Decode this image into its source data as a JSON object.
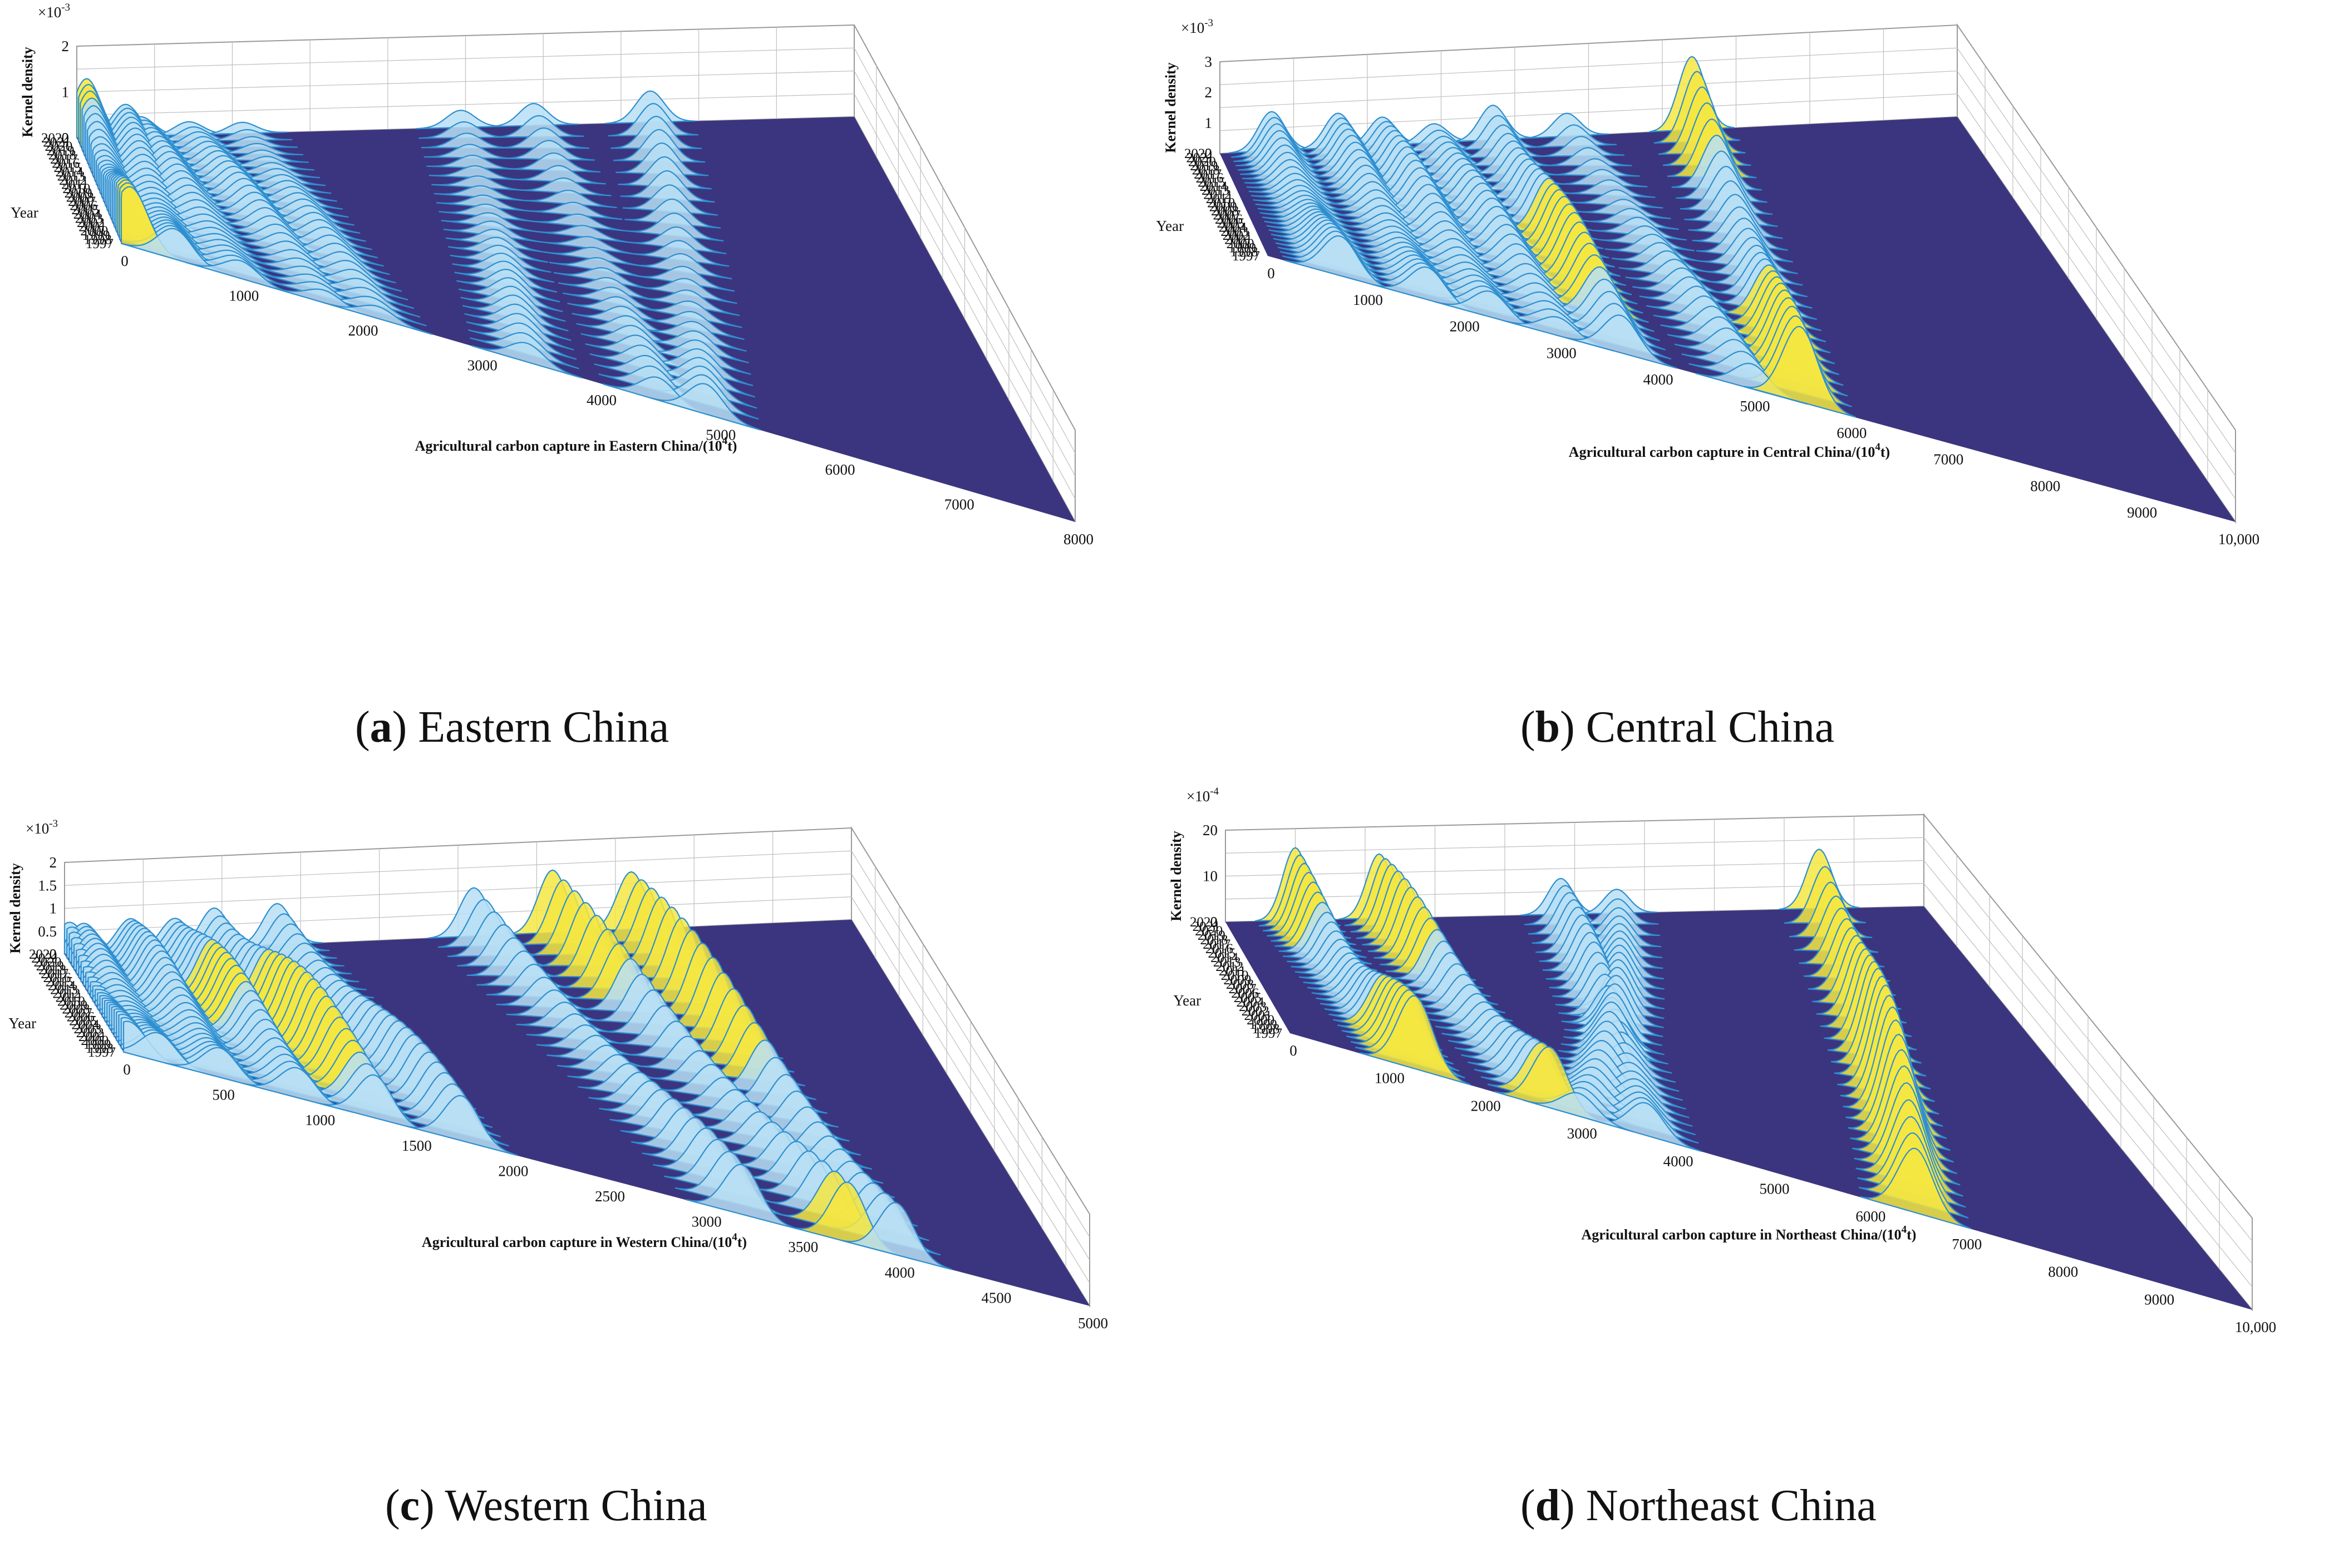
{
  "colors": {
    "floor": "#3b3580",
    "ridge_edge": "#2f8fd0",
    "peak_high": "#f5e642",
    "grid": "#bfbfbf",
    "box": "#9a9a9a"
  },
  "chart_data": [
    {
      "type": "surface",
      "panel_letter": "a",
      "caption": "Eastern China",
      "xlabel": "Agricultural carbon capture in Eastern China/(10",
      "xlabel_sup": "4",
      "xlabel_end": "t)",
      "ylabel": "Year",
      "zlabel": "Kernel density",
      "zscale": "×10",
      "zscale_exp": "-3",
      "xlim": [
        0,
        8000
      ],
      "xticks": [
        "0",
        "1000",
        "2000",
        "3000",
        "4000",
        "5000",
        "6000",
        "7000",
        "8000"
      ],
      "zticks": [
        "0",
        "1",
        "2"
      ],
      "zlim": [
        0,
        2
      ],
      "years": [
        "1997",
        "1998",
        "1999",
        "2000",
        "2001",
        "2002",
        "2003",
        "2004",
        "2005",
        "2006",
        "2007",
        "2008",
        "2009",
        "2010",
        "2011",
        "2012",
        "2013",
        "2014",
        "2015",
        "2016",
        "2017",
        "2018",
        "2019",
        "2020",
        "2021",
        "2022"
      ],
      "ridges": [
        {
          "x_start": 80,
          "x_end": 100,
          "height": 1.3
        },
        {
          "x_start": 450,
          "x_end": 500,
          "height": 0.75
        },
        {
          "x_start": 1000,
          "x_end": 650,
          "height": 0.6
        },
        {
          "x_start": 1700,
          "x_end": 1150,
          "height": 0.55
        },
        {
          "x_start": 2150,
          "x_end": 1700,
          "height": 0.45
        },
        {
          "x_start": 3400,
          "x_end": 3950,
          "height": 0.5
        },
        {
          "x_start": 4500,
          "x_end": 4700,
          "height": 0.5
        },
        {
          "x_start": 4900,
          "x_end": 5900,
          "height": 0.7
        }
      ]
    },
    {
      "type": "surface",
      "panel_letter": "b",
      "caption": "Central China",
      "xlabel": "Agricultural carbon capture in Central China/(10",
      "xlabel_sup": "4",
      "xlabel_end": "t)",
      "ylabel": "Year",
      "zlabel": "Kernel density",
      "zscale": "×10",
      "zscale_exp": "-3",
      "xlim": [
        0,
        10000
      ],
      "xticks": [
        "0",
        "1000",
        "2000",
        "3000",
        "4000",
        "5000",
        "6000",
        "7000",
        "8000",
        "9000",
        "10,000"
      ],
      "zticks": [
        "0",
        "1",
        "2",
        "3"
      ],
      "zlim": [
        0,
        3
      ],
      "years": [
        "1997",
        "1998",
        "1999",
        "2000",
        "2001",
        "2002",
        "2003",
        "2004",
        "2005",
        "2006",
        "2007",
        "2008",
        "2009",
        "2010",
        "2011",
        "2012",
        "2013",
        "2014",
        "2015",
        "2016",
        "2017",
        "2018",
        "2019",
        "2020",
        "2021",
        "2022"
      ],
      "ridges": [
        {
          "x_start": 750,
          "x_end": 700,
          "height": 1.3
        },
        {
          "x_start": 1650,
          "x_end": 1600,
          "height": 1.2
        },
        {
          "x_start": 2300,
          "x_end": 2200,
          "height": 1.3
        },
        {
          "x_start": 3000,
          "x_end": 2900,
          "height": 1.2
        },
        {
          "x_start": 3650,
          "x_end": 3700,
          "height": 2.1
        },
        {
          "x_start": 5000,
          "x_end": 4700,
          "height": 1.0
        },
        {
          "x_start": 5500,
          "x_end": 6400,
          "height": 2.5
        }
      ]
    },
    {
      "type": "surface",
      "panel_letter": "c",
      "caption": "Western China",
      "xlabel": "Agricultural carbon capture in Western China/(10",
      "xlabel_sup": "4",
      "xlabel_end": "t)",
      "ylabel": "Year",
      "zlabel": "Kernel density",
      "zscale": "×10",
      "zscale_exp": "-3",
      "xlim": [
        0,
        5000
      ],
      "xticks": [
        "0",
        "500",
        "1000",
        "1500",
        "2000",
        "2500",
        "3000",
        "3500",
        "4000",
        "4500",
        "5000"
      ],
      "zticks": [
        "0",
        "0.5",
        "1",
        "1.5",
        "2"
      ],
      "zlim": [
        0,
        2
      ],
      "years": [
        "1997",
        "1998",
        "1999",
        "2000",
        "2001",
        "2002",
        "2003",
        "2004",
        "2005",
        "2006",
        "2007",
        "2008",
        "2009",
        "2010",
        "2011",
        "2012",
        "2013",
        "2014",
        "2015",
        "2016",
        "2017",
        "2018",
        "2019",
        "2020",
        "2021",
        "2022"
      ],
      "ridges": [
        {
          "x_start": 30,
          "x_end": 30,
          "height": 0.7
        },
        {
          "x_start": 180,
          "x_end": 120,
          "height": 0.7
        },
        {
          "x_start": 500,
          "x_end": 420,
          "height": 1.0
        },
        {
          "x_start": 900,
          "x_end": 700,
          "height": 1.3
        },
        {
          "x_start": 1300,
          "x_end": 950,
          "height": 1.6
        },
        {
          "x_start": 1750,
          "x_end": 1350,
          "height": 1.2
        },
        {
          "x_start": 3200,
          "x_end": 2600,
          "height": 1.1
        },
        {
          "x_start": 3750,
          "x_end": 3100,
          "height": 1.4
        },
        {
          "x_start": 4000,
          "x_end": 3600,
          "height": 1.6
        }
      ]
    },
    {
      "type": "surface",
      "panel_letter": "d",
      "caption": "Northeast China",
      "xlabel": "Agricultural carbon capture in Northeast China/(10",
      "xlabel_sup": "4",
      "xlabel_end": "t)",
      "ylabel": "Year",
      "zlabel": "Kernel density",
      "zscale": "×10",
      "zscale_exp": "-4",
      "xlim": [
        0,
        10000
      ],
      "xticks": [
        "0",
        "1000",
        "2000",
        "3000",
        "4000",
        "5000",
        "6000",
        "7000",
        "8000",
        "9000",
        "10,000"
      ],
      "zticks": [
        "0",
        "10",
        "20"
      ],
      "zlim": [
        0,
        20
      ],
      "years": [
        "1997",
        "1998",
        "1999",
        "2000",
        "2001",
        "2002",
        "2003",
        "2004",
        "2005",
        "2006",
        "2007",
        "2008",
        "2009",
        "2010",
        "2011",
        "2012",
        "2013",
        "2014",
        "2015",
        "2016",
        "2017",
        "2018",
        "2019",
        "2020",
        "2021",
        "2022"
      ],
      "ridges": [
        {
          "x_start": 1300,
          "x_end": 1000,
          "height": 16
        },
        {
          "x_start": 2700,
          "x_end": 2200,
          "height": 15
        },
        {
          "x_start": 3700,
          "x_end": 4800,
          "height": 11
        },
        {
          "x_start": 3000,
          "x_end": 5600,
          "height": 10
        },
        {
          "x_start": 6500,
          "x_end": 8500,
          "height": 24
        }
      ]
    }
  ]
}
